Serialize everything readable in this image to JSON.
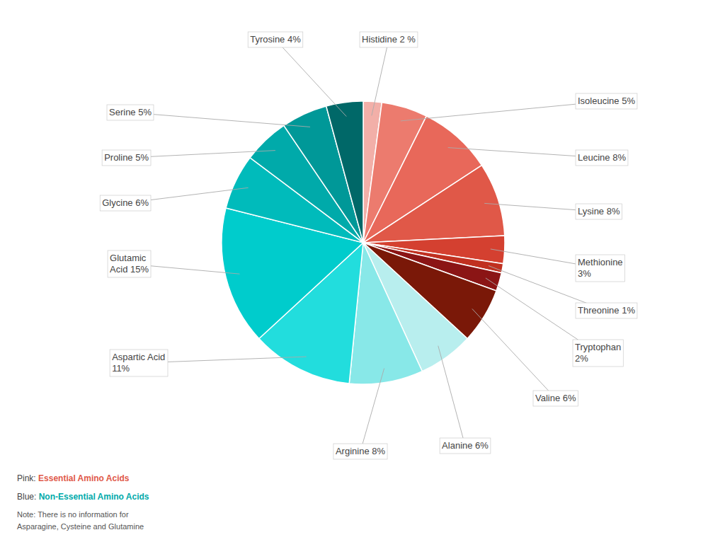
{
  "chart_data": {
    "type": "pie",
    "categories": [
      "Histidine 2 %",
      "Isoleucine 5%",
      "Leucine 8%",
      "Lysine 8%",
      "Methionine\n3%",
      "Threonine 1%",
      "Tryptophan\n2%",
      "Valine 6%",
      "Alanine 6%",
      "Arginine 8%",
      "Aspartic Acid\n11%",
      "Glutamic\nAcid 15%",
      "Glycine 6%",
      "Proline 5%",
      "Serine 5%",
      "Tyrosine 4%"
    ],
    "values": [
      2,
      5,
      8,
      8,
      3,
      1,
      2,
      6,
      6,
      8,
      11,
      15,
      6,
      5,
      5,
      4
    ],
    "colors": [
      "#F2AFA8",
      "#EC7B6E",
      "#E8685A",
      "#E05848",
      "#D44030",
      "#C03020",
      "#8B1515",
      "#7A1808",
      "#B8EEEE",
      "#88E8E8",
      "#22DDDD",
      "#00CCCC",
      "#00BBBB",
      "#00AAAA",
      "#009898",
      "#006868"
    ],
    "annotations": [
      {
        "text": "Pink:",
        "color": "#444444"
      },
      {
        "text": "Essential Amino Acids",
        "color": "#E05848"
      },
      {
        "text": "Blue:",
        "color": "#444444"
      },
      {
        "text": "Non-Essential Amino Acids",
        "color": "#00AAAA"
      },
      {
        "text": "Note: There is no information for\nAsparagine, Cysteine and Glutamine",
        "color": "#555555"
      }
    ]
  }
}
